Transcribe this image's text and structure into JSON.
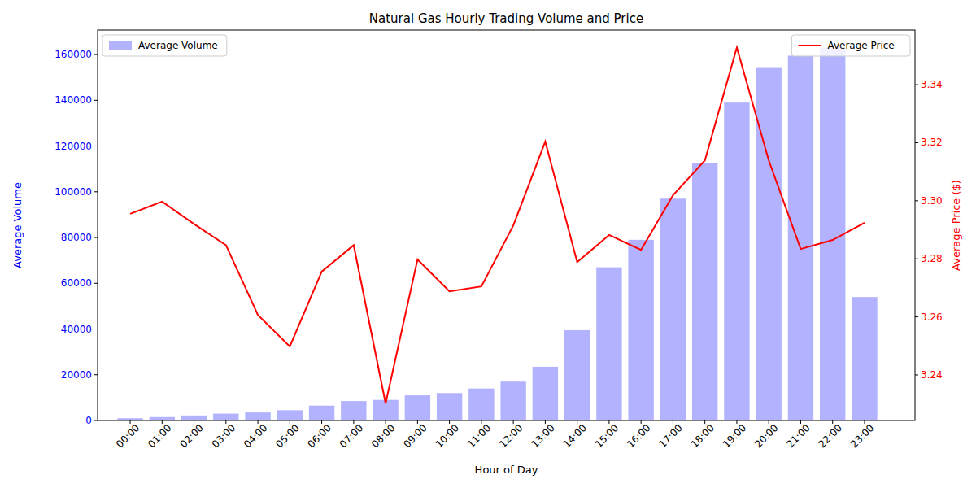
{
  "chart_data": {
    "type": "bar",
    "title": "Natural Gas Hourly Trading Volume and Price",
    "x_label": "Hour of Day",
    "y_label": "Average Volume",
    "y2_label": "Average Price ($)",
    "categories": [
      "00:00",
      "01:00",
      "02:00",
      "03:00",
      "04:00",
      "05:00",
      "06:00",
      "07:00",
      "08:00",
      "09:00",
      "10:00",
      "11:00",
      "12:00",
      "13:00",
      "14:00",
      "15:00",
      "16:00",
      "17:00",
      "18:00",
      "19:00",
      "20:00",
      "21:00",
      "22:00",
      "23:00"
    ],
    "series": [
      {
        "name": "Average Volume",
        "type": "bar",
        "color": "blue",
        "legend": "upper left",
        "values": [
          1000,
          1500,
          2200,
          3000,
          3500,
          4500,
          6500,
          8500,
          9000,
          11000,
          12000,
          14000,
          17000,
          23500,
          39500,
          67000,
          79000,
          97000,
          112500,
          139000,
          154500,
          159500,
          163000,
          54000
        ]
      },
      {
        "name": "Average Price",
        "type": "line",
        "color": "red",
        "axis": "y2",
        "legend": "upper right",
        "values": [
          3.2955,
          3.2997,
          3.292,
          3.2847,
          3.2607,
          3.2498,
          3.2756,
          3.2847,
          3.2302,
          3.2798,
          3.2688,
          3.2705,
          3.2915,
          3.3204,
          3.2789,
          3.2882,
          3.2831,
          3.3019,
          3.3139,
          3.3528,
          3.3139,
          3.2834,
          3.2865,
          3.2924
        ]
      }
    ],
    "ylim": [
      0,
      170700
    ],
    "yticks": [
      0,
      20000,
      40000,
      60000,
      80000,
      100000,
      120000,
      140000,
      160000
    ],
    "y2lim": [
      3.2243,
      3.3588
    ],
    "y2ticks": [
      3.24,
      3.26,
      3.28,
      {
        "value": 3.3,
        "label": "3.30"
      },
      3.32,
      3.34
    ],
    "grid": false
  }
}
